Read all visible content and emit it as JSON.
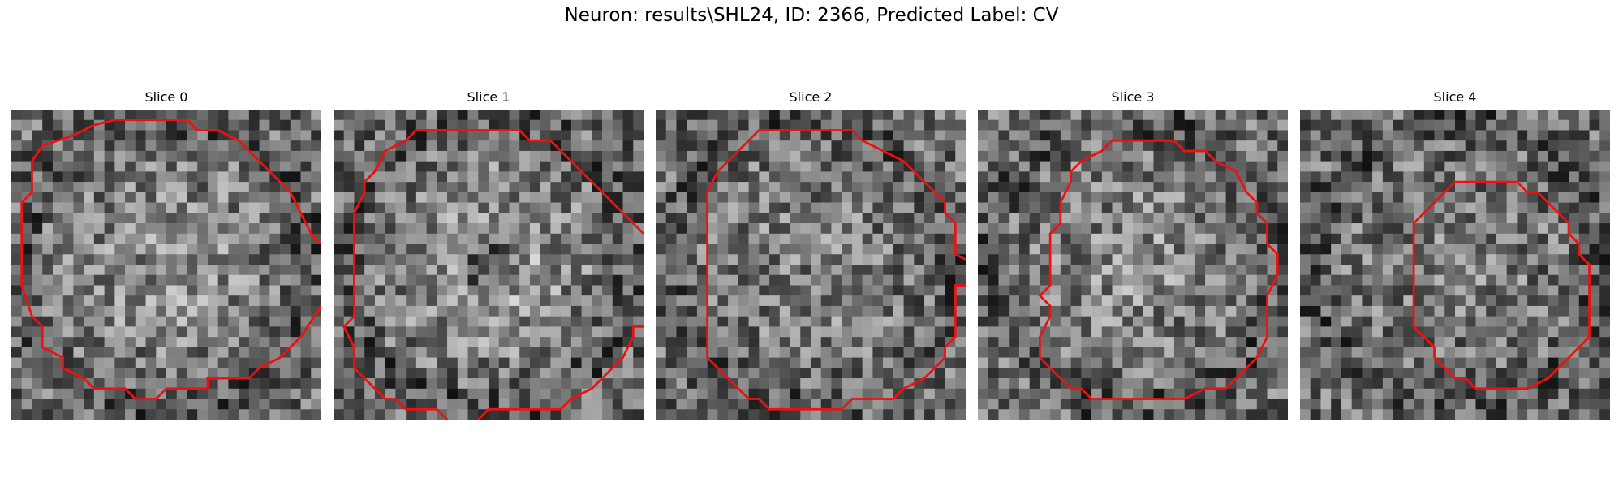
{
  "figure": {
    "title": "Neuron: results\\SHL24, ID: 2366, Predicted Label: CV",
    "contour_color": "#ee1111",
    "panels": [
      {
        "label": "Slice 0",
        "seed": 11,
        "center_bias": 0.55,
        "dark_center": 0.1
      },
      {
        "label": "Slice 1",
        "seed": 23,
        "center_bias": 0.7,
        "dark_center": 0.45
      },
      {
        "label": "Slice 2",
        "seed": 37,
        "center_bias": 0.3,
        "dark_center": 0.05
      },
      {
        "label": "Slice 3",
        "seed": 41,
        "center_bias": 0.4,
        "dark_center": 0.0
      },
      {
        "label": "Slice 4",
        "seed": 59,
        "center_bias": 0.25,
        "dark_center": 0.0
      }
    ]
  }
}
